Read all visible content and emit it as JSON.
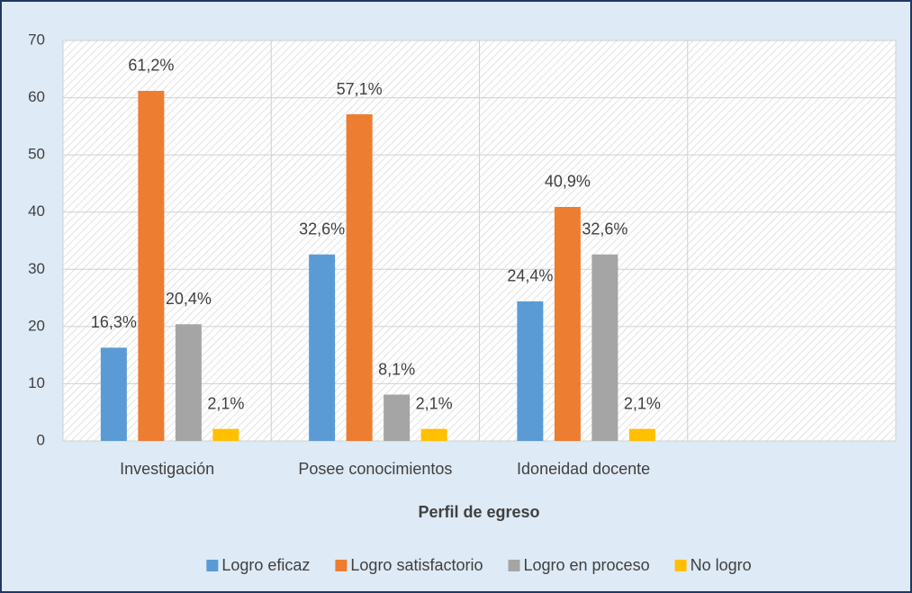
{
  "chart_data": {
    "type": "bar",
    "x_label": "Perfil de egreso",
    "categories": [
      "Investigación",
      "Posee conocimientos",
      "Idoneidad docente",
      null
    ],
    "series": [
      {
        "name": "Logro eficaz",
        "color": "#5b9bd5",
        "values": [
          16.3,
          32.6,
          24.4,
          null
        ],
        "value_labels": [
          "16,3%",
          "32,6%",
          "24,4%",
          null
        ]
      },
      {
        "name": "Logro satisfactorio",
        "color": "#ed7d31",
        "values": [
          61.2,
          57.1,
          40.9,
          null
        ],
        "value_labels": [
          "61,2%",
          "57,1%",
          "40,9%",
          null
        ]
      },
      {
        "name": "Logro en proceso",
        "color": "#a5a5a5",
        "values": [
          20.4,
          8.1,
          32.6,
          null
        ],
        "value_labels": [
          "20,4%",
          "8,1%",
          "32,6%",
          null
        ]
      },
      {
        "name": "No logro",
        "color": "#ffc000",
        "values": [
          2.1,
          2.1,
          2.1,
          null
        ],
        "value_labels": [
          "2,1%",
          "2,1%",
          "2,1%",
          null
        ]
      }
    ],
    "ylim": [
      0,
      70
    ],
    "yticks": [
      0,
      10,
      20,
      30,
      40,
      50,
      60,
      70
    ],
    "grid": true,
    "legend": "bottom"
  }
}
